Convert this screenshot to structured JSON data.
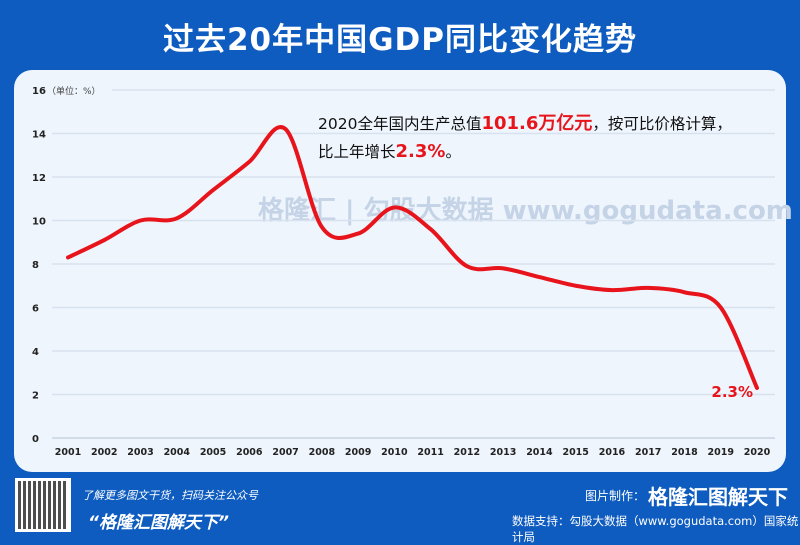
{
  "title": "过去20年中国GDP同比变化趋势",
  "annotation": {
    "prefix": "2020全年国内生产总值",
    "value": "101.6万亿元",
    "suffix": "，按可比价格计算，",
    "line2_prefix": "比上年增长",
    "growth": "2.3%",
    "line2_suffix": "。"
  },
  "watermark": "格隆汇 | 勾股大数据  www.gogudata.com",
  "footer": {
    "line1": "了解更多图文干货，扫码关注公众号",
    "line2": "“格隆汇图解天下”",
    "maker_label": "图片制作：",
    "maker_brand": "格隆汇图解天下",
    "support": "数据支持：勾股大数据（www.gogudata.com）国家统计局"
  },
  "colors": {
    "background": "#0f5cc0",
    "line": "#e8141b",
    "card": "#eef5fd"
  },
  "chart_data": {
    "type": "line",
    "ylabel": "（单位：%）",
    "ylim": [
      0,
      16
    ],
    "yticks": [
      0,
      2,
      4,
      6,
      8,
      10,
      12,
      14,
      16
    ],
    "grid": true,
    "categories": [
      "2001",
      "2002",
      "2003",
      "2004",
      "2005",
      "2006",
      "2007",
      "2008",
      "2009",
      "2010",
      "2011",
      "2012",
      "2013",
      "2014",
      "2015",
      "2016",
      "2017",
      "2018",
      "2019",
      "2020"
    ],
    "series": [
      {
        "values": [
          8.3,
          9.1,
          10.0,
          10.1,
          11.4,
          12.7,
          14.2,
          9.7,
          9.4,
          10.6,
          9.6,
          7.9,
          7.8,
          7.4,
          7.0,
          6.8,
          6.9,
          6.7,
          6.0,
          2.3
        ]
      }
    ],
    "data_label": "2.3%"
  }
}
